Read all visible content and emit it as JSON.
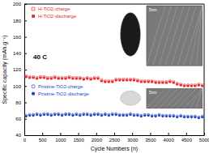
{
  "chart_data": {
    "type": "scatter",
    "x_label": "Cycle Numbers (n)",
    "y_label": "Specific capacity (mAh.g⁻¹)",
    "annotations": [
      "40 C",
      "5nm",
      "5nm"
    ],
    "x": [
      50,
      150,
      250,
      350,
      450,
      550,
      650,
      750,
      850,
      950,
      1050,
      1150,
      1250,
      1350,
      1450,
      1550,
      1650,
      1750,
      1850,
      1950,
      2050,
      2150,
      2250,
      2350,
      2450,
      2550,
      2650,
      2750,
      2850,
      2950,
      3050,
      3150,
      3250,
      3350,
      3450,
      3550,
      3650,
      3750,
      3850,
      3950,
      4050,
      4150,
      4250,
      4350,
      4450,
      4550,
      4650,
      4750,
      4850,
      4950
    ],
    "series": [
      {
        "name": "H-TiO2-charge",
        "color": "#e8262a",
        "marker": "square-open",
        "values": [
          112,
          111,
          111,
          110,
          111,
          111,
          110,
          110,
          111,
          110,
          110,
          110,
          111,
          110,
          110,
          110,
          109,
          110,
          109,
          110,
          110,
          107,
          106,
          106,
          106,
          108,
          108,
          108,
          108,
          108,
          108,
          107,
          106,
          106,
          106,
          106,
          105,
          105,
          105,
          105,
          106,
          105,
          103,
          102,
          101,
          101,
          101,
          101,
          102,
          101
        ]
      },
      {
        "name": "H-TiO2-discharge",
        "color": "#e8262a",
        "marker": "square",
        "values": [
          111,
          110,
          110,
          109,
          110,
          110,
          109,
          109,
          110,
          109,
          109,
          109,
          110,
          109,
          109,
          109,
          108,
          109,
          108,
          109,
          109,
          106,
          105,
          105,
          105,
          107,
          107,
          107,
          107,
          107,
          107,
          106,
          105,
          105,
          105,
          105,
          104,
          104,
          104,
          104,
          105,
          104,
          102,
          101,
          100,
          100,
          100,
          100,
          101,
          100
        ]
      },
      {
        "name": "Pristine-TiO2-charge",
        "color": "#1f3fbf",
        "marker": "circle-open",
        "values": [
          64,
          65,
          65,
          66,
          65,
          66,
          66,
          65,
          66,
          66,
          65,
          66,
          66,
          65,
          66,
          65,
          66,
          66,
          65,
          66,
          66,
          65,
          66,
          65,
          66,
          66,
          65,
          65,
          65,
          66,
          65,
          65,
          64,
          65,
          65,
          64,
          64,
          65,
          64,
          64,
          64,
          64,
          63,
          64,
          63,
          63,
          63,
          63,
          62,
          63
        ]
      },
      {
        "name": "Pristine-TiO2-discharge",
        "color": "#1f3fbf",
        "marker": "circle",
        "values": [
          63,
          64,
          64,
          65,
          64,
          65,
          65,
          64,
          65,
          65,
          64,
          65,
          65,
          64,
          65,
          64,
          65,
          65,
          64,
          65,
          65,
          64,
          65,
          64,
          65,
          65,
          64,
          64,
          64,
          65,
          64,
          64,
          63,
          64,
          64,
          63,
          63,
          64,
          63,
          63,
          63,
          63,
          62,
          63,
          62,
          62,
          62,
          62,
          61,
          62
        ]
      }
    ],
    "xlim": [
      0,
      5000
    ],
    "xticks": [
      0,
      500,
      1000,
      1500,
      2000,
      2500,
      3000,
      3500,
      4000,
      4500,
      5000
    ],
    "ylim": [
      40,
      200
    ],
    "yticks": [
      40,
      60,
      80,
      100,
      120,
      140,
      160,
      180,
      200
    ]
  }
}
